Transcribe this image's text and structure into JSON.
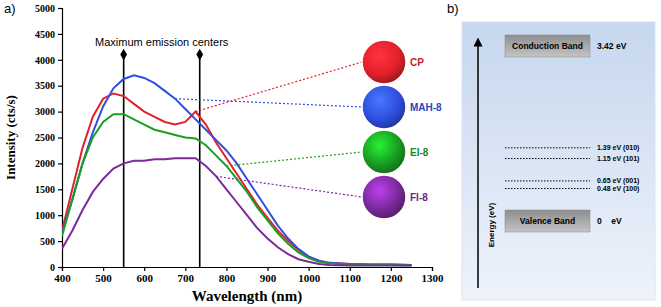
{
  "chart_data": [
    {
      "type": "line",
      "panel_label": "a)",
      "x_label": "Wavelength (nm)",
      "y_label": "Intensity (cts/s)",
      "x": [
        400,
        425,
        450,
        475,
        500,
        525,
        550,
        575,
        600,
        625,
        650,
        675,
        700,
        725,
        750,
        775,
        800,
        825,
        850,
        875,
        900,
        925,
        950,
        975,
        1000,
        1025,
        1050,
        1100,
        1150,
        1200,
        1250
      ],
      "series": [
        {
          "name": "CP",
          "color": "#e3212b",
          "values": [
            700,
            1500,
            2300,
            2900,
            3250,
            3350,
            3300,
            3150,
            3000,
            2900,
            2800,
            2750,
            2800,
            3000,
            2750,
            2400,
            2100,
            1800,
            1500,
            1200,
            950,
            700,
            500,
            330,
            200,
            120,
            80,
            60,
            50,
            50,
            40
          ]
        },
        {
          "name": "MAH-8",
          "color": "#2f4fe0",
          "values": [
            650,
            1300,
            2000,
            2600,
            3100,
            3450,
            3630,
            3700,
            3650,
            3550,
            3400,
            3250,
            3050,
            2850,
            2650,
            2450,
            2250,
            2000,
            1700,
            1400,
            1100,
            800,
            550,
            350,
            200,
            120,
            80,
            60,
            50,
            50,
            40
          ]
        },
        {
          "name": "EI-8",
          "color": "#1a9e22",
          "values": [
            600,
            1300,
            2000,
            2500,
            2800,
            2950,
            2950,
            2850,
            2750,
            2650,
            2600,
            2550,
            2500,
            2480,
            2350,
            2150,
            1950,
            1700,
            1450,
            1150,
            900,
            650,
            450,
            280,
            170,
            100,
            70,
            50,
            40,
            40,
            30
          ]
        },
        {
          "name": "FI-8",
          "color": "#7b2a9c",
          "values": [
            350,
            700,
            1100,
            1450,
            1700,
            1900,
            2000,
            2050,
            2050,
            2080,
            2080,
            2100,
            2100,
            2100,
            1950,
            1750,
            1500,
            1250,
            1000,
            750,
            550,
            380,
            250,
            150,
            100,
            60,
            40,
            30,
            30,
            30,
            30
          ]
        }
      ],
      "xlim": [
        400,
        1300
      ],
      "xticks": [
        400,
        500,
        600,
        700,
        800,
        900,
        1000,
        1100,
        1200,
        1300
      ],
      "ylim": [
        0,
        5000
      ],
      "yticks": [
        0,
        500,
        1000,
        1500,
        2000,
        2500,
        3000,
        3500,
        4000,
        4500,
        5000
      ],
      "annotations": [
        {
          "text": "Maximum emission centers",
          "x": [
            550,
            735
          ],
          "y": 4100
        }
      ],
      "legend": "right"
    },
    {
      "type": "energy_levels",
      "panel_label": "b)",
      "y_label": "Energy (eV)",
      "bands": [
        {
          "name": "Conduction Band",
          "value": 3.42,
          "label": "3.42 eV"
        },
        {
          "name": "Valence Band",
          "value": 0,
          "label": "0    eV"
        }
      ],
      "levels": [
        {
          "value": 1.39,
          "label": "1.39 eV (010)"
        },
        {
          "value": 1.15,
          "label": "1.15 eV (101)"
        },
        {
          "value": 0.65,
          "label": "0.65 eV (001)"
        },
        {
          "value": 0.48,
          "label": "0.48 eV (100)"
        }
      ]
    }
  ]
}
